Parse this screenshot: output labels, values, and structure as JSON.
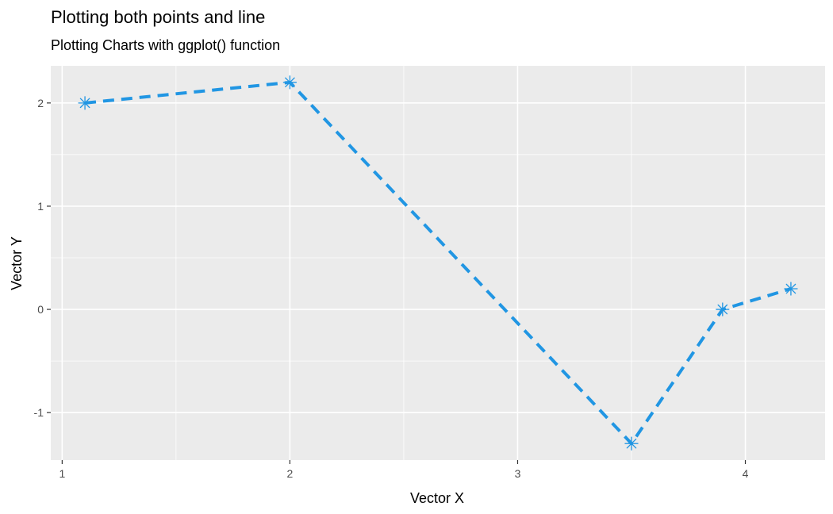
{
  "chart_data": {
    "type": "line",
    "title": "Plotting both points and line",
    "subtitle": "Plotting Charts with ggplot() function",
    "xlabel": "Vector X",
    "ylabel": "Vector Y",
    "xlim": [
      0.95,
      4.35
    ],
    "ylim": [
      -1.46,
      2.36
    ],
    "x_ticks": [
      1,
      2,
      3,
      4
    ],
    "x_tick_labels": [
      "1",
      "2",
      "3",
      "4"
    ],
    "y_ticks": [
      -1,
      0,
      1,
      2
    ],
    "y_tick_labels": [
      "-1",
      "0",
      "1",
      "2"
    ],
    "grid": true,
    "series": [
      {
        "x": [
          1.1,
          2.0,
          3.5,
          3.9,
          4.2
        ],
        "y": [
          2.0,
          2.2,
          -1.3,
          0.0,
          0.2
        ],
        "color": "#2196e3",
        "line_style": "dashed",
        "marker": "asterisk"
      }
    ]
  },
  "colors": {
    "panel_background": "#ebebeb",
    "grid_line": "#ffffff",
    "tick_color": "#333333"
  }
}
